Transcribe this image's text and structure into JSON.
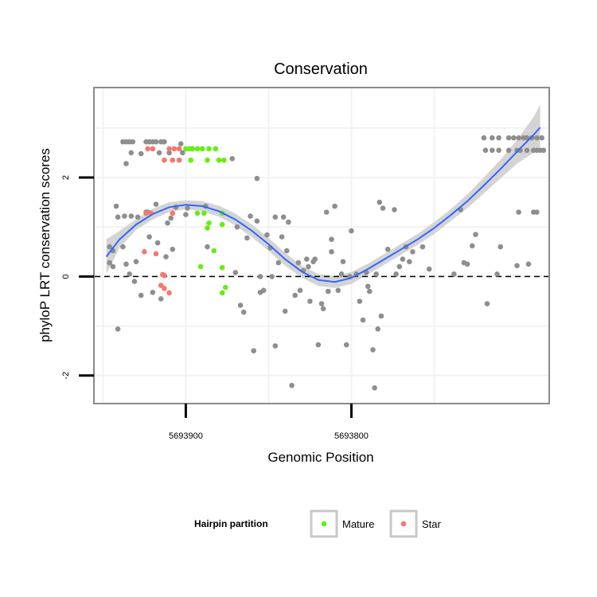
{
  "chart_data": {
    "type": "scatter",
    "title": "Conservation",
    "xlabel": "Genomic Position",
    "ylabel": "phyloP LRT conservation scores",
    "x_reversed": true,
    "xlim": [
      5693681,
      5693955
    ],
    "ylim": [
      -2.55,
      3.8
    ],
    "x_ticks": [
      5693900,
      5693800
    ],
    "y_ticks": [
      2,
      0,
      -2
    ],
    "reference_line": {
      "y": 0,
      "style": "dashed",
      "color": "#000000"
    },
    "grid": true,
    "legend": {
      "title": "Hairpin partition",
      "position": "bottom",
      "entries": [
        {
          "name": "Mature",
          "color": "#66ee11"
        },
        {
          "name": "Star",
          "color": "#f8766d"
        }
      ]
    },
    "colors": {
      "other": "#8e8e8e",
      "Mature": "#66ee11",
      "Star": "#f8766d",
      "smooth_line": "#3366ff",
      "ribbon": "#d4d4d4"
    },
    "smooth": {
      "x": [
        5693948,
        5693940,
        5693930,
        5693920,
        5693910,
        5693900,
        5693890,
        5693880,
        5693870,
        5693860,
        5693850,
        5693840,
        5693830,
        5693820,
        5693810,
        5693800,
        5693790,
        5693780,
        5693770,
        5693760,
        5693750,
        5693740,
        5693730,
        5693720,
        5693710,
        5693700,
        5693690,
        5693686
      ],
      "y": [
        0.4,
        0.75,
        1.05,
        1.26,
        1.4,
        1.45,
        1.42,
        1.32,
        1.15,
        0.92,
        0.65,
        0.35,
        0.1,
        -0.07,
        -0.11,
        -0.03,
        0.15,
        0.35,
        0.55,
        0.75,
        0.98,
        1.24,
        1.52,
        1.84,
        2.17,
        2.52,
        2.86,
        3.01
      ],
      "lower": [
        0.05,
        0.58,
        0.94,
        1.15,
        1.3,
        1.36,
        1.32,
        1.21,
        1.03,
        0.79,
        0.52,
        0.22,
        -0.02,
        -0.19,
        -0.23,
        -0.15,
        0.04,
        0.24,
        0.44,
        0.64,
        0.86,
        1.12,
        1.38,
        1.68,
        1.98,
        2.28,
        2.5,
        2.55
      ],
      "upper": [
        0.75,
        0.92,
        1.16,
        1.37,
        1.5,
        1.54,
        1.52,
        1.43,
        1.27,
        1.05,
        0.78,
        0.48,
        0.22,
        0.05,
        0.01,
        0.09,
        0.26,
        0.46,
        0.66,
        0.86,
        1.1,
        1.36,
        1.66,
        2.0,
        2.36,
        2.76,
        3.22,
        3.47
      ]
    },
    "series": [
      {
        "name": "Mature",
        "points": [
          [
            5693900,
            2.58
          ],
          [
            5693898,
            2.58
          ],
          [
            5693896,
            2.58
          ],
          [
            5693893,
            2.58
          ],
          [
            5693890,
            2.58
          ],
          [
            5693886,
            2.58
          ],
          [
            5693882,
            2.58
          ],
          [
            5693897,
            2.35
          ],
          [
            5693887,
            2.35
          ],
          [
            5693880,
            2.35
          ],
          [
            5693877,
            2.35
          ],
          [
            5693893,
            1.28
          ],
          [
            5693889,
            1.28
          ],
          [
            5693878,
            1.28
          ],
          [
            5693886,
            1.08
          ],
          [
            5693878,
            1.05
          ],
          [
            5693887,
            0.98
          ],
          [
            5693883,
            0.52
          ],
          [
            5693891,
            0.2
          ],
          [
            5693878,
            0.18
          ],
          [
            5693876,
            -0.22
          ],
          [
            5693878,
            -0.33
          ]
        ]
      },
      {
        "name": "Star",
        "points": [
          [
            5693923,
            2.58
          ],
          [
            5693920,
            2.58
          ],
          [
            5693910,
            2.58
          ],
          [
            5693907,
            2.58
          ],
          [
            5693904,
            2.58
          ],
          [
            5693913,
            2.35
          ],
          [
            5693908,
            2.35
          ],
          [
            5693904,
            2.35
          ],
          [
            5693924,
            1.28
          ],
          [
            5693921,
            1.28
          ],
          [
            5693908,
            1.28
          ],
          [
            5693925,
            0.5
          ],
          [
            5693918,
            0.46
          ],
          [
            5693914,
            0.04
          ],
          [
            5693913,
            0.02
          ],
          [
            5693915,
            -0.18
          ],
          [
            5693913,
            -0.24
          ],
          [
            5693910,
            -0.33
          ]
        ]
      },
      {
        "name": "other",
        "points": [
          [
            5693946,
            0.6
          ],
          [
            5693944,
            0.52
          ],
          [
            5693946,
            0.28
          ],
          [
            5693944,
            0.2
          ],
          [
            5693942,
            1.42
          ],
          [
            5693941,
            1.2
          ],
          [
            5693941,
            -1.06
          ],
          [
            5693938,
            0.6
          ],
          [
            5693937,
            1.22
          ],
          [
            5693936,
            0.25
          ],
          [
            5693936,
            2.28
          ],
          [
            5693934,
            0.05
          ],
          [
            5693933,
            2.5
          ],
          [
            5693933,
            1.22
          ],
          [
            5693931,
            -0.1
          ],
          [
            5693930,
            0.3
          ],
          [
            5693929,
            1.2
          ],
          [
            5693927,
            2.48
          ],
          [
            5693924,
            1.3
          ],
          [
            5693922,
            0.8
          ],
          [
            5693920,
            -0.32
          ],
          [
            5693917,
            0.68
          ],
          [
            5693915,
            -0.45
          ],
          [
            5693912,
            0.4
          ],
          [
            5693911,
            1.08
          ],
          [
            5693909,
            1.18
          ],
          [
            5693908,
            0.55
          ],
          [
            5693906,
            1.4
          ],
          [
            5693903,
            2.68
          ],
          [
            5693900,
            1.25
          ],
          [
            5693902,
            2.5
          ],
          [
            5693899,
            1.38
          ],
          [
            5693896,
            2.58
          ],
          [
            5693890,
            2.58
          ],
          [
            5693888,
            1.42
          ],
          [
            5693887,
            0.6
          ],
          [
            5693870,
            0.08
          ],
          [
            5693872,
            2.38
          ],
          [
            5693869,
            1.0
          ],
          [
            5693867,
            -0.58
          ],
          [
            5693865,
            -0.72
          ],
          [
            5693863,
            0.78
          ],
          [
            5693861,
            1.22
          ],
          [
            5693859,
            -1.5
          ],
          [
            5693857,
            1.98
          ],
          [
            5693857,
            1.12
          ],
          [
            5693855,
            0.0
          ],
          [
            5693855,
            -0.32
          ],
          [
            5693853,
            -0.28
          ],
          [
            5693851,
            0.84
          ],
          [
            5693849,
            0.58
          ],
          [
            5693848,
            0.0
          ],
          [
            5693846,
            -1.4
          ],
          [
            5693846,
            1.2
          ],
          [
            5693844,
            0.28
          ],
          [
            5693842,
            0.8
          ],
          [
            5693841,
            1.2
          ],
          [
            5693840,
            -0.7
          ],
          [
            5693839,
            0.52
          ],
          [
            5693838,
            1.1
          ],
          [
            5693836,
            -2.2
          ],
          [
            5693834,
            -0.38
          ],
          [
            5693832,
            0.28
          ],
          [
            5693831,
            -0.28
          ],
          [
            5693829,
            0.12
          ],
          [
            5693827,
            0.35
          ],
          [
            5693826,
            0.2
          ],
          [
            5693825,
            -0.5
          ],
          [
            5693823,
            0.3
          ],
          [
            5693822,
            0.35
          ],
          [
            5693820,
            -1.38
          ],
          [
            5693818,
            -0.55
          ],
          [
            5693817,
            -0.65
          ],
          [
            5693815,
            1.3
          ],
          [
            5693814,
            -0.3
          ],
          [
            5693812,
            0.75
          ],
          [
            5693812,
            0.5
          ],
          [
            5693810,
            1.42
          ],
          [
            5693808,
            -0.28
          ],
          [
            5693806,
            0.05
          ],
          [
            5693805,
            0.3
          ],
          [
            5693803,
            -1.38
          ],
          [
            5693801,
            0.0
          ],
          [
            5693800,
            0.92
          ],
          [
            5693797,
            0.05
          ],
          [
            5693795,
            -0.5
          ],
          [
            5693793,
            -0.88
          ],
          [
            5693791,
            0.08
          ],
          [
            5693790,
            -0.2
          ],
          [
            5693789,
            -0.3
          ],
          [
            5693787,
            -1.48
          ],
          [
            5693786,
            -2.25
          ],
          [
            5693785,
            0.05
          ],
          [
            5693784,
            -1.06
          ],
          [
            5693782,
            -0.8
          ],
          [
            5693781,
            1.38
          ],
          [
            5693783,
            1.5
          ],
          [
            5693778,
            0.55
          ],
          [
            5693774,
            1.35
          ],
          [
            5693773,
            0.05
          ],
          [
            5693771,
            0.2
          ],
          [
            5693769,
            0.35
          ],
          [
            5693767,
            0.6
          ],
          [
            5693765,
            0.3
          ],
          [
            5693763,
            0.5
          ],
          [
            5693757,
            0.6
          ],
          [
            5693753,
            0.15
          ],
          [
            5693738,
            0.05
          ],
          [
            5693734,
            1.35
          ],
          [
            5693732,
            0.28
          ],
          [
            5693730,
            0.25
          ],
          [
            5693727,
            0.62
          ],
          [
            5693725,
            0.85
          ],
          [
            5693720,
            2.8
          ],
          [
            5693715,
            2.8
          ],
          [
            5693711,
            2.8
          ],
          [
            5693705,
            2.8
          ],
          [
            5693702,
            2.8
          ],
          [
            5693699,
            2.8
          ],
          [
            5693696,
            2.8
          ],
          [
            5693694,
            2.8
          ],
          [
            5693691,
            2.8
          ],
          [
            5693688,
            2.8
          ],
          [
            5693685,
            2.8
          ],
          [
            5693719,
            2.55
          ],
          [
            5693715,
            2.55
          ],
          [
            5693711,
            2.55
          ],
          [
            5693705,
            2.55
          ],
          [
            5693700,
            2.55
          ],
          [
            5693698,
            2.55
          ],
          [
            5693694,
            2.55
          ],
          [
            5693690,
            2.55
          ],
          [
            5693688,
            2.55
          ],
          [
            5693684,
            2.55
          ],
          [
            5693699,
            1.3
          ],
          [
            5693688,
            1.3
          ],
          [
            5693690,
            1.3
          ],
          [
            5693700,
            0.22
          ],
          [
            5693693,
            0.25
          ],
          [
            5693710,
            0.6
          ],
          [
            5693712,
            0.05
          ],
          [
            5693718,
            -0.55
          ],
          [
            5693686,
            2.55
          ],
          [
            5693938,
            2.72
          ],
          [
            5693936,
            2.72
          ],
          [
            5693934,
            2.72
          ],
          [
            5693932,
            2.72
          ],
          [
            5693924,
            2.72
          ],
          [
            5693922,
            2.72
          ],
          [
            5693920,
            2.72
          ],
          [
            5693918,
            2.72
          ],
          [
            5693915,
            2.72
          ],
          [
            5693913,
            2.72
          ],
          [
            5693916,
            2.5
          ],
          [
            5693910,
            2.5
          ],
          [
            5693918,
            1.46
          ],
          [
            5693923,
            1.3
          ],
          [
            5693927,
            -0.38
          ]
        ]
      }
    ]
  }
}
